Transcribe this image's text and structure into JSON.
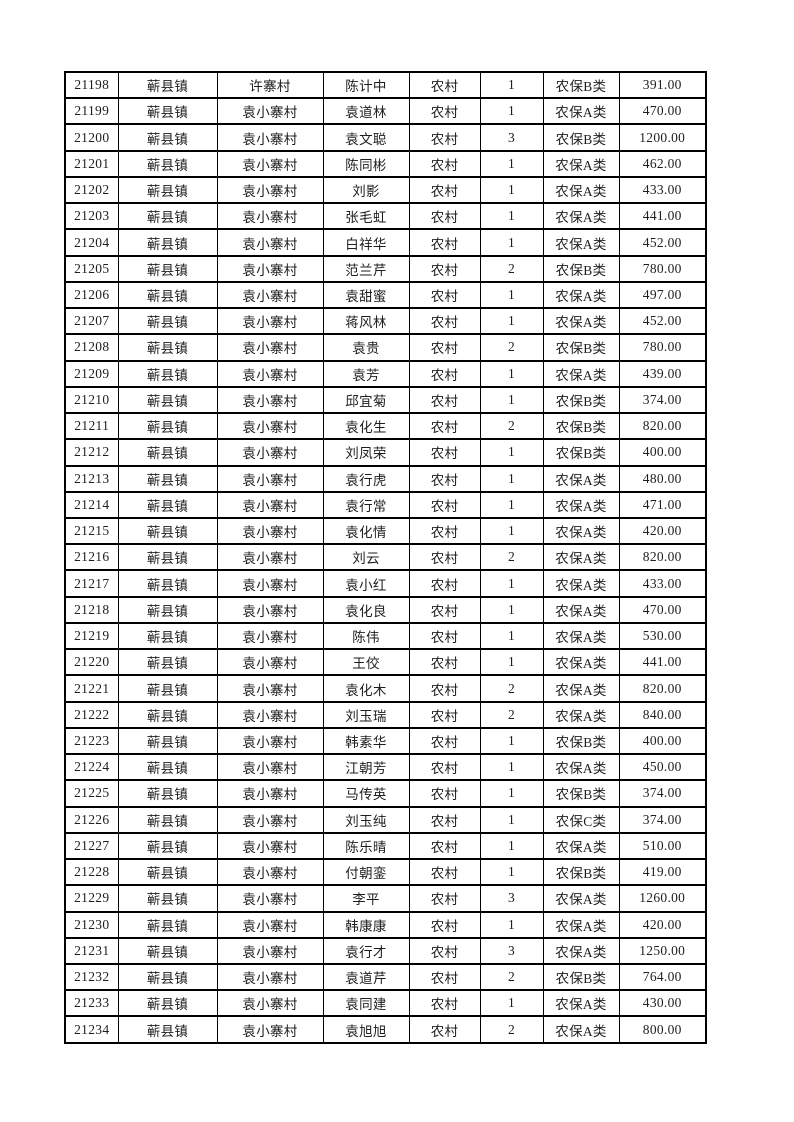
{
  "page": {
    "background_color": "#ffffff",
    "text_color": "#1e1e1e",
    "border_color": "#000000"
  },
  "table": {
    "rows": [
      [
        "21198",
        "蕲县镇",
        "许寨村",
        "陈计中",
        "农村",
        "1",
        "农保B类",
        "391.00"
      ],
      [
        "21199",
        "蕲县镇",
        "袁小寨村",
        "袁道林",
        "农村",
        "1",
        "农保A类",
        "470.00"
      ],
      [
        "21200",
        "蕲县镇",
        "袁小寨村",
        "袁文聪",
        "农村",
        "3",
        "农保B类",
        "1200.00"
      ],
      [
        "21201",
        "蕲县镇",
        "袁小寨村",
        "陈同彬",
        "农村",
        "1",
        "农保A类",
        "462.00"
      ],
      [
        "21202",
        "蕲县镇",
        "袁小寨村",
        "刘影",
        "农村",
        "1",
        "农保A类",
        "433.00"
      ],
      [
        "21203",
        "蕲县镇",
        "袁小寨村",
        "张毛虹",
        "农村",
        "1",
        "农保A类",
        "441.00"
      ],
      [
        "21204",
        "蕲县镇",
        "袁小寨村",
        "白祥华",
        "农村",
        "1",
        "农保A类",
        "452.00"
      ],
      [
        "21205",
        "蕲县镇",
        "袁小寨村",
        "范兰芹",
        "农村",
        "2",
        "农保B类",
        "780.00"
      ],
      [
        "21206",
        "蕲县镇",
        "袁小寨村",
        "袁甜蜜",
        "农村",
        "1",
        "农保A类",
        "497.00"
      ],
      [
        "21207",
        "蕲县镇",
        "袁小寨村",
        "蒋风林",
        "农村",
        "1",
        "农保A类",
        "452.00"
      ],
      [
        "21208",
        "蕲县镇",
        "袁小寨村",
        "袁贵",
        "农村",
        "2",
        "农保B类",
        "780.00"
      ],
      [
        "21209",
        "蕲县镇",
        "袁小寨村",
        "袁芳",
        "农村",
        "1",
        "农保A类",
        "439.00"
      ],
      [
        "21210",
        "蕲县镇",
        "袁小寨村",
        "邱宜菊",
        "农村",
        "1",
        "农保B类",
        "374.00"
      ],
      [
        "21211",
        "蕲县镇",
        "袁小寨村",
        "袁化生",
        "农村",
        "2",
        "农保B类",
        "820.00"
      ],
      [
        "21212",
        "蕲县镇",
        "袁小寨村",
        "刘凤荣",
        "农村",
        "1",
        "农保B类",
        "400.00"
      ],
      [
        "21213",
        "蕲县镇",
        "袁小寨村",
        "袁行虎",
        "农村",
        "1",
        "农保A类",
        "480.00"
      ],
      [
        "21214",
        "蕲县镇",
        "袁小寨村",
        "袁行常",
        "农村",
        "1",
        "农保A类",
        "471.00"
      ],
      [
        "21215",
        "蕲县镇",
        "袁小寨村",
        "袁化情",
        "农村",
        "1",
        "农保A类",
        "420.00"
      ],
      [
        "21216",
        "蕲县镇",
        "袁小寨村",
        "刘云",
        "农村",
        "2",
        "农保A类",
        "820.00"
      ],
      [
        "21217",
        "蕲县镇",
        "袁小寨村",
        "袁小红",
        "农村",
        "1",
        "农保A类",
        "433.00"
      ],
      [
        "21218",
        "蕲县镇",
        "袁小寨村",
        "袁化良",
        "农村",
        "1",
        "农保A类",
        "470.00"
      ],
      [
        "21219",
        "蕲县镇",
        "袁小寨村",
        "陈伟",
        "农村",
        "1",
        "农保A类",
        "530.00"
      ],
      [
        "21220",
        "蕲县镇",
        "袁小寨村",
        "王佼",
        "农村",
        "1",
        "农保A类",
        "441.00"
      ],
      [
        "21221",
        "蕲县镇",
        "袁小寨村",
        "袁化木",
        "农村",
        "2",
        "农保A类",
        "820.00"
      ],
      [
        "21222",
        "蕲县镇",
        "袁小寨村",
        "刘玉瑞",
        "农村",
        "2",
        "农保A类",
        "840.00"
      ],
      [
        "21223",
        "蕲县镇",
        "袁小寨村",
        "韩素华",
        "农村",
        "1",
        "农保B类",
        "400.00"
      ],
      [
        "21224",
        "蕲县镇",
        "袁小寨村",
        "江朝芳",
        "农村",
        "1",
        "农保A类",
        "450.00"
      ],
      [
        "21225",
        "蕲县镇",
        "袁小寨村",
        "马传英",
        "农村",
        "1",
        "农保B类",
        "374.00"
      ],
      [
        "21226",
        "蕲县镇",
        "袁小寨村",
        "刘玉纯",
        "农村",
        "1",
        "农保C类",
        "374.00"
      ],
      [
        "21227",
        "蕲县镇",
        "袁小寨村",
        "陈乐晴",
        "农村",
        "1",
        "农保A类",
        "510.00"
      ],
      [
        "21228",
        "蕲县镇",
        "袁小寨村",
        "付朝銮",
        "农村",
        "1",
        "农保B类",
        "419.00"
      ],
      [
        "21229",
        "蕲县镇",
        "袁小寨村",
        "李平",
        "农村",
        "3",
        "农保A类",
        "1260.00"
      ],
      [
        "21230",
        "蕲县镇",
        "袁小寨村",
        "韩康康",
        "农村",
        "1",
        "农保A类",
        "420.00"
      ],
      [
        "21231",
        "蕲县镇",
        "袁小寨村",
        "袁行才",
        "农村",
        "3",
        "农保A类",
        "1250.00"
      ],
      [
        "21232",
        "蕲县镇",
        "袁小寨村",
        "袁道芹",
        "农村",
        "2",
        "农保B类",
        "764.00"
      ],
      [
        "21233",
        "蕲县镇",
        "袁小寨村",
        "袁同建",
        "农村",
        "1",
        "农保A类",
        "430.00"
      ],
      [
        "21234",
        "蕲县镇",
        "袁小寨村",
        "袁旭旭",
        "农村",
        "2",
        "农保A类",
        "800.00"
      ]
    ]
  }
}
